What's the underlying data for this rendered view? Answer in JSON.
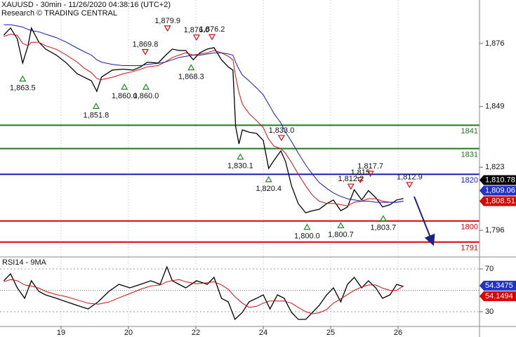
{
  "chart_data": [
    {
      "type": "line",
      "title": "XAUUSD - 30min - 11/26/2020 04:38:16 (UTC+2)",
      "subtitle": "Research © TRADING CENTRAL",
      "xlim": [
        0.094,
        7.208
      ],
      "ylim": [
        1784.9,
        1894.6
      ],
      "yticks": [
        {
          "value": 1876,
          "label": "1,876"
        },
        {
          "value": 1849,
          "label": "1,849"
        },
        {
          "value": 1823,
          "label": "1,823"
        },
        {
          "value": 1796,
          "label": "1,796"
        }
      ],
      "x": [
        0.15,
        0.25,
        0.35,
        0.43,
        0.51,
        0.56,
        0.67,
        0.77,
        0.93,
        1.08,
        1.24,
        1.34,
        1.45,
        1.53,
        1.6,
        1.76,
        1.92,
        2.07,
        2.18,
        2.28,
        2.44,
        2.54,
        2.65,
        2.75,
        2.85,
        2.96,
        3.06,
        3.17,
        3.27,
        3.38,
        3.48,
        3.55,
        3.59,
        3.64,
        3.69,
        3.79,
        3.9,
        4.0,
        4.08,
        4.16,
        4.26,
        4.33,
        4.42,
        4.52,
        4.63,
        4.73,
        4.83,
        4.94,
        5.04,
        5.15,
        5.25,
        5.35,
        5.46,
        5.56,
        5.67,
        5.77,
        5.88,
        5.98,
        6.08
      ],
      "series": [
        {
          "color": "#000000",
          "values": [
            1879.6,
            1882.6,
            1878,
            1867.6,
            1875,
            1882.6,
            1876.6,
            1873.6,
            1871,
            1867.6,
            1863,
            1861.6,
            1860,
            1855.5,
            1861.6,
            1864.6,
            1865,
            1864.6,
            1866,
            1868,
            1867.6,
            1870.6,
            1873.6,
            1873,
            1873,
            1869,
            1872,
            1873.6,
            1874.2,
            1869,
            1866,
            1864.6,
            1840.5,
            1833,
            1839,
            1838,
            1837.5,
            1834.5,
            1822.5,
            1826,
            1830,
            1825.5,
            1815,
            1807.4,
            1803.5,
            1804.4,
            1805,
            1807.4,
            1809,
            1804.4,
            1806,
            1813.4,
            1809,
            1813,
            1810,
            1806,
            1807,
            1809,
            1809.6
          ]
        },
        {
          "color": "#d01010",
          "values": [
            1879,
            1880,
            1879.5,
            1876,
            1875,
            1876.5,
            1876.5,
            1875,
            1873.5,
            1871,
            1868,
            1865.5,
            1863.5,
            1861,
            1860.5,
            1861.5,
            1863,
            1864,
            1865,
            1866,
            1866.5,
            1868,
            1870,
            1871,
            1872,
            1871,
            1871.5,
            1872,
            1873,
            1872,
            1870.5,
            1869,
            1862,
            1855,
            1850,
            1846,
            1843,
            1840,
            1835,
            1832,
            1831,
            1829,
            1825,
            1820,
            1815,
            1811,
            1808.5,
            1807.5,
            1807.5,
            1807,
            1806.5,
            1808,
            1808.5,
            1809.5,
            1809.5,
            1808.5,
            1808,
            1808,
            1808.5
          ]
        },
        {
          "color": "#1a1aa6",
          "values": [
            1884,
            1884,
            1883.5,
            1883,
            1882,
            1881.5,
            1881,
            1880,
            1878.5,
            1876.5,
            1874,
            1872.5,
            1871,
            1869,
            1868,
            1867,
            1866.5,
            1866.5,
            1866.5,
            1867,
            1867.5,
            1868,
            1869,
            1870,
            1870.5,
            1871,
            1871,
            1871.5,
            1872,
            1872,
            1871.5,
            1871,
            1868,
            1865,
            1862.5,
            1860,
            1857,
            1854,
            1850,
            1846,
            1842,
            1838,
            1834,
            1829,
            1824,
            1820,
            1816.5,
            1814,
            1812,
            1810.5,
            1809.5,
            1809,
            1808.5,
            1808.5,
            1808,
            1808,
            1808,
            1808,
            1808.5
          ]
        }
      ],
      "levels": [
        {
          "value": 1841,
          "color": "#1f7a1f"
        },
        {
          "value": 1831,
          "color": "#1f7a1f"
        },
        {
          "value": 1820,
          "color": "#1a1acc"
        },
        {
          "value": 1800,
          "color": "#dd0000"
        },
        {
          "value": 1791,
          "color": "#dd0000"
        }
      ],
      "annotations": [
        {
          "x": 0.43,
          "value": 1863.5,
          "label": "1,863.5",
          "dir": "up"
        },
        {
          "x": 1.52,
          "value": 1851.8,
          "label": "1,851.8",
          "dir": "up"
        },
        {
          "x": 1.94,
          "value": 1860.0,
          "label": "1,860.0",
          "dir": "up"
        },
        {
          "x": 2.26,
          "value": 1860.0,
          "label": "1,860.0",
          "dir": "up"
        },
        {
          "x": 2.93,
          "value": 1868.3,
          "label": "1,868.3",
          "dir": "up"
        },
        {
          "x": 3.66,
          "value": 1830.1,
          "label": "1,830.1",
          "dir": "up"
        },
        {
          "x": 4.08,
          "value": 1820.4,
          "label": "1,820.4",
          "dir": "up"
        },
        {
          "x": 4.65,
          "value": 1800.0,
          "label": "1,800.0",
          "dir": "up"
        },
        {
          "x": 5.15,
          "value": 1800.7,
          "label": "1,800.7",
          "dir": "up"
        },
        {
          "x": 5.78,
          "value": 1803.7,
          "label": "1,803.7",
          "dir": "up"
        },
        {
          "x": 2.25,
          "value": 1869.8,
          "label": "1,869.8",
          "dir": "down"
        },
        {
          "x": 2.58,
          "value": 1879.9,
          "label": "1,879.9",
          "dir": "down"
        },
        {
          "x": 3.01,
          "value": 1876.0,
          "label": "1,876.0",
          "dir": "down"
        },
        {
          "x": 3.24,
          "value": 1876.2,
          "label": "1,876.2",
          "dir": "down"
        },
        {
          "x": 4.27,
          "value": 1833.0,
          "label": "1,833.0",
          "dir": "down"
        },
        {
          "x": 5.3,
          "value": 1812.2,
          "label": "1,812.2",
          "dir": "down"
        },
        {
          "x": 5.44,
          "value": 1815,
          "label": "1,815",
          "dir": "down"
        },
        {
          "x": 5.59,
          "value": 1817.7,
          "label": "1,817.7",
          "dir": "down"
        },
        {
          "x": 6.17,
          "value": 1812.9,
          "label": "1,812.9",
          "dir": "down"
        }
      ],
      "price_tags": [
        {
          "value": 1810.78,
          "label": "1,810.78",
          "color": "#000000"
        },
        {
          "value": 1809.06,
          "label": "1,809.06",
          "color": "#2233cc"
        },
        {
          "value": 1808.51,
          "label": "1,808.51",
          "color": "#dd0000"
        }
      ]
    },
    {
      "type": "line",
      "title": "RSI14 - 9MA",
      "xlim": [
        0.094,
        7.208
      ],
      "ylim": [
        16.2,
        80.5
      ],
      "yticks": [
        70,
        30
      ],
      "midline": 50,
      "xticks": [
        {
          "value": 1,
          "label": "19"
        },
        {
          "value": 2,
          "label": "20"
        },
        {
          "value": 3,
          "label": "22"
        },
        {
          "value": 4,
          "label": "24"
        },
        {
          "value": 5,
          "label": "25"
        },
        {
          "value": 6,
          "label": "26"
        }
      ],
      "x": [
        0.15,
        0.25,
        0.35,
        0.46,
        0.56,
        0.67,
        0.77,
        0.93,
        1.08,
        1.24,
        1.4,
        1.55,
        1.71,
        1.86,
        2.02,
        2.18,
        2.33,
        2.47,
        2.57,
        2.65,
        2.75,
        2.85,
        3.01,
        3.17,
        3.27,
        3.38,
        3.48,
        3.58,
        3.69,
        3.79,
        3.9,
        4.0,
        4.1,
        4.21,
        4.31,
        4.42,
        4.52,
        4.63,
        4.73,
        4.83,
        4.94,
        5.04,
        5.15,
        5.25,
        5.35,
        5.46,
        5.56,
        5.67,
        5.77,
        5.88,
        5.98,
        6.08
      ],
      "series": [
        {
          "color": "#000000",
          "values": [
            58.9,
            65.4,
            52.3,
            42.5,
            58.9,
            49,
            45.7,
            42.5,
            39.2,
            35.9,
            32.6,
            39.2,
            49,
            55.6,
            52.3,
            55.6,
            58.9,
            55.6,
            72,
            58.9,
            55.6,
            52.3,
            58.9,
            55.6,
            62.1,
            42.5,
            39.2,
            22.8,
            29.3,
            39.2,
            42.5,
            45.7,
            32.6,
            45.7,
            42.5,
            29.3,
            22.8,
            22.8,
            29.3,
            35.9,
            45.7,
            52.3,
            39.2,
            55.6,
            62.1,
            52.3,
            58.9,
            52.3,
            42.5,
            45.7,
            55.6,
            53.6
          ]
        },
        {
          "color": "#d01010",
          "values": [
            58,
            60,
            59,
            55,
            54,
            52,
            49,
            46,
            44,
            41,
            38,
            37,
            39,
            43,
            47,
            51,
            54,
            55,
            58,
            59,
            60,
            58,
            56,
            57,
            58,
            55,
            51,
            44,
            38,
            34,
            35,
            38,
            40,
            40,
            40,
            38,
            34,
            30,
            28,
            29,
            32,
            38,
            42,
            46,
            50,
            53,
            55,
            55,
            52,
            50,
            50,
            54.1
          ]
        }
      ],
      "price_tags": [
        {
          "value": 54.3475,
          "color": "#2233cc"
        },
        {
          "value": 54.1494,
          "color": "#dd0000"
        }
      ]
    }
  ]
}
